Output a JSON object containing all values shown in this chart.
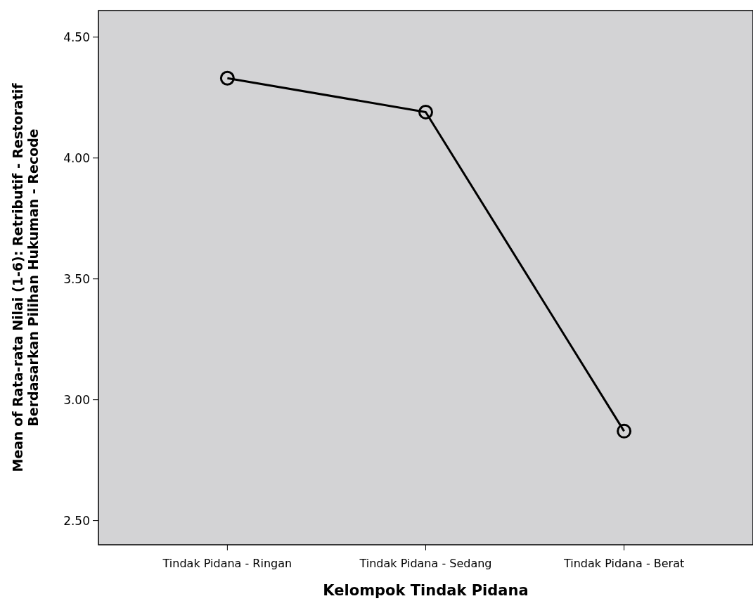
{
  "chart_data": {
    "type": "line",
    "xlabel": "Kelompok Tindak Pidana",
    "ylabel": "Mean of Rata-rata Nilai (1-6): Retributif - Restoratif\nBerdasarkan Pilihan Hukuman - Recode",
    "categories": [
      "Tindak Pidana - Ringan",
      "Tindak Pidana - Sedang",
      "Tindak Pidana - Berat"
    ],
    "series": [
      {
        "color": "#000000",
        "values": [
          4.33,
          4.19,
          2.87
        ]
      }
    ],
    "ylim": [
      2.4,
      4.61
    ],
    "yticks": [
      {
        "value": 2.5,
        "label": "2.50"
      },
      {
        "value": 3,
        "label": "3.00"
      },
      {
        "value": 3.5,
        "label": "3.50"
      },
      {
        "value": 4,
        "label": "4.00"
      },
      {
        "value": 4.5,
        "label": "4.50"
      }
    ],
    "marker": "circle",
    "line_style": "solid",
    "grid": false
  }
}
